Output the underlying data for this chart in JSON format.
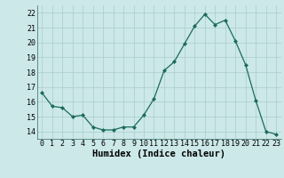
{
  "x": [
    0,
    1,
    2,
    3,
    4,
    5,
    6,
    7,
    8,
    9,
    10,
    11,
    12,
    13,
    14,
    15,
    16,
    17,
    18,
    19,
    20,
    21,
    22,
    23
  ],
  "y": [
    16.6,
    15.7,
    15.6,
    15.0,
    15.1,
    14.3,
    14.1,
    14.1,
    14.3,
    14.3,
    15.1,
    16.2,
    18.1,
    18.7,
    19.9,
    21.1,
    21.9,
    21.2,
    21.5,
    20.1,
    18.5,
    16.1,
    14.0,
    13.8
  ],
  "line_color": "#1a6b5a",
  "marker": "D",
  "marker_size": 2.0,
  "bg_color": "#cce8e8",
  "grid_color": "#aacccc",
  "xlabel": "Humidex (Indice chaleur)",
  "ylim": [
    13.5,
    22.5
  ],
  "xlim": [
    -0.5,
    23.5
  ],
  "yticks": [
    14,
    15,
    16,
    17,
    18,
    19,
    20,
    21,
    22
  ],
  "xticks": [
    0,
    1,
    2,
    3,
    4,
    5,
    6,
    7,
    8,
    9,
    10,
    11,
    12,
    13,
    14,
    15,
    16,
    17,
    18,
    19,
    20,
    21,
    22,
    23
  ],
  "xlabel_fontsize": 7.5,
  "tick_fontsize": 6.0,
  "line_width": 0.9
}
